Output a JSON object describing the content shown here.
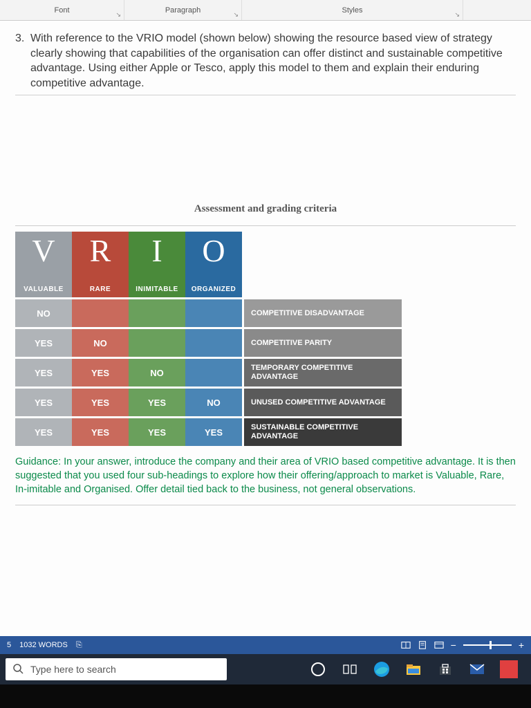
{
  "ribbon": {
    "groups": [
      {
        "label": "Font"
      },
      {
        "label": "Paragraph"
      },
      {
        "label": "Styles"
      }
    ],
    "launcher_glyph": "↘"
  },
  "question": {
    "number": "3.",
    "text": "With reference to the VRIO model (shown below) showing the resource based view of strategy clearly showing that capabilities of the organisation can offer distinct and sustainable competitive advantage.  Using either Apple or Tesco, apply this model to them and explain their enduring competitive advantage."
  },
  "assessment_title": "Assessment and grading criteria",
  "vrio": {
    "headers": [
      {
        "letter": "V",
        "word": "VALUABLE",
        "bg": "#9aa0a6",
        "rowbg": "#b0b4b8"
      },
      {
        "letter": "R",
        "word": "RARE",
        "bg": "#b84a3a",
        "rowbg": "#c96a5c"
      },
      {
        "letter": "I",
        "word": "INIMITABLE",
        "bg": "#4a8a3a",
        "rowbg": "#6aa05c"
      },
      {
        "letter": "O",
        "word": "ORGANIZED",
        "bg": "#2a6aa0",
        "rowbg": "#4a85b5"
      }
    ],
    "rows": [
      {
        "cells": [
          "NO",
          "",
          "",
          ""
        ],
        "outcome": "COMPETITIVE DISADVANTAGE",
        "outcome_bg": "#9a9a9a"
      },
      {
        "cells": [
          "YES",
          "NO",
          "",
          ""
        ],
        "outcome": "COMPETITIVE PARITY",
        "outcome_bg": "#8a8a8a"
      },
      {
        "cells": [
          "YES",
          "YES",
          "NO",
          ""
        ],
        "outcome": "TEMPORARY COMPETITIVE ADVANTAGE",
        "outcome_bg": "#6a6a6a"
      },
      {
        "cells": [
          "YES",
          "YES",
          "YES",
          "NO"
        ],
        "outcome": "UNUSED COMPETITIVE ADVANTAGE",
        "outcome_bg": "#5a5a5a"
      },
      {
        "cells": [
          "YES",
          "YES",
          "YES",
          "YES"
        ],
        "outcome": "SUSTAINABLE COMPETITIVE ADVANTAGE",
        "outcome_bg": "#3a3a3a"
      }
    ]
  },
  "guidance": "Guidance:  In your answer, introduce the company and their area of VRIO based competitive advantage.  It is then suggested that you used four sub-headings to explore how their offering/approach to market is Valuable, Rare, In-imitable and Organised.  Offer detail tied back to the business, not general observations.",
  "statusbar": {
    "page_indicator": "5",
    "words": "1032 WORDS",
    "proofing_glyph": "⎘"
  },
  "taskbar": {
    "search_placeholder": "Type here to search",
    "icons": {
      "cortana": "◯",
      "taskview": "⊞",
      "edge_color": "#39c2d7",
      "explorer_color": "#ffc83d",
      "store_color": "#ffffff",
      "mail_color": "#50a0e0"
    }
  }
}
